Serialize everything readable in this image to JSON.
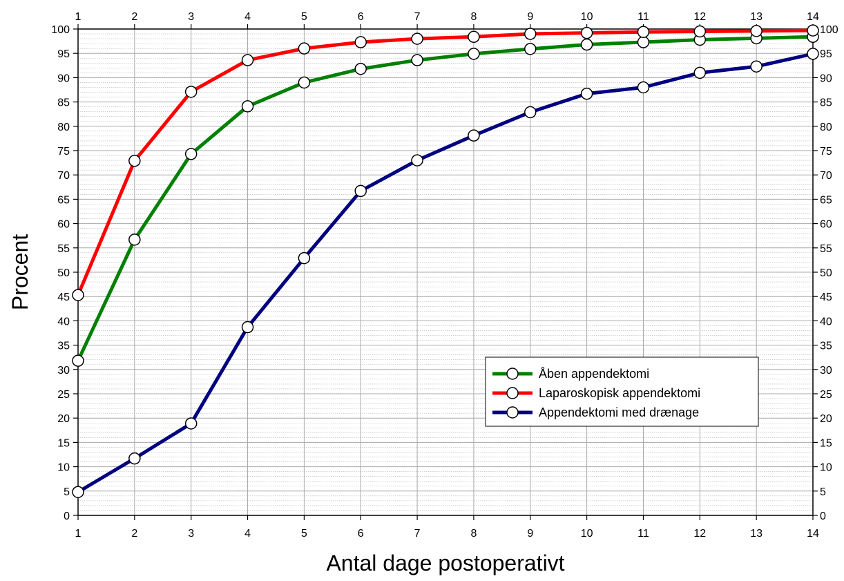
{
  "chart_data": {
    "type": "line",
    "title": "",
    "xlabel": "Antal dage postoperativt",
    "ylabel": "Procent",
    "x": [
      1,
      2,
      3,
      4,
      5,
      6,
      7,
      8,
      9,
      10,
      11,
      12,
      13,
      14
    ],
    "xlim": [
      1,
      14
    ],
    "ylim": [
      0,
      100
    ],
    "y_major_step": 5,
    "y_minor_step": 1,
    "grid": true,
    "secondary_axes": true,
    "legend_position": "lower-right",
    "series": [
      {
        "name": "Åben appendektomi",
        "color": "#008000",
        "values": [
          31.8,
          56.7,
          74.3,
          84.1,
          89.0,
          91.8,
          93.6,
          94.9,
          95.9,
          96.8,
          97.3,
          97.8,
          98.1,
          98.4
        ]
      },
      {
        "name": "Laparoskopisk appendektomi",
        "color": "#ff0000",
        "values": [
          45.3,
          72.9,
          87.1,
          93.6,
          96.0,
          97.3,
          98.0,
          98.4,
          99.0,
          99.2,
          99.4,
          99.5,
          99.6,
          99.7
        ]
      },
      {
        "name": "Appendektomi med drænage",
        "color": "#000080",
        "values": [
          4.8,
          11.7,
          18.9,
          38.7,
          52.9,
          66.7,
          73.0,
          78.1,
          82.9,
          86.7,
          88.0,
          91.0,
          92.3,
          94.9
        ]
      }
    ]
  }
}
